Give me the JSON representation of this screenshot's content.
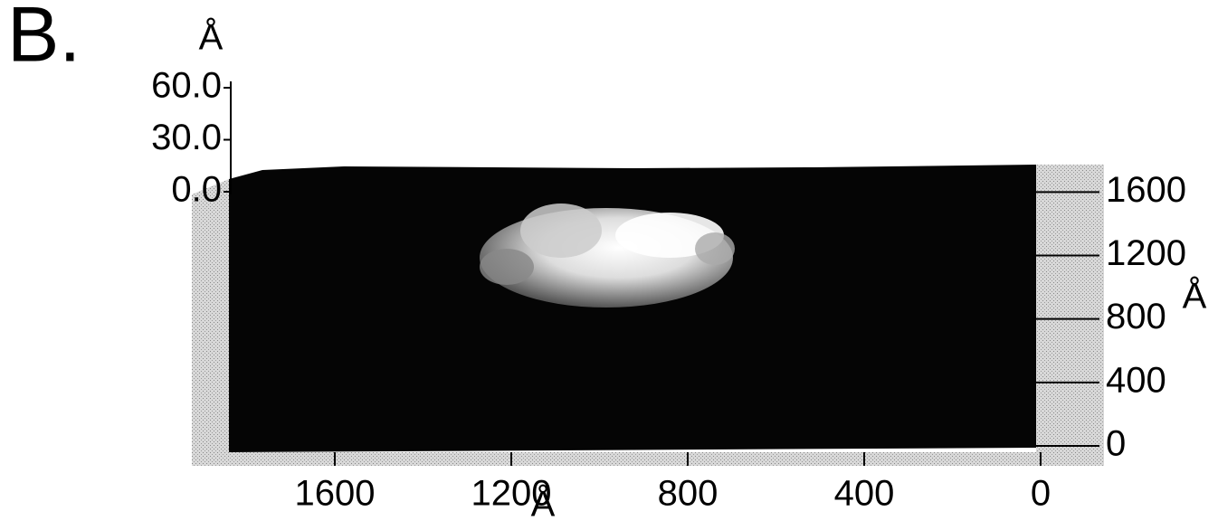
{
  "panel_label": "B.",
  "chart_data": {
    "type": "surface",
    "x_label": "Å",
    "y_label": "Å",
    "z_label": "Å",
    "xlim": [
      1840,
      0
    ],
    "xticks": [
      1600,
      1200,
      800,
      400,
      0
    ],
    "ylim": [
      0,
      1750
    ],
    "yticks": [
      0,
      400,
      800,
      1200,
      1600
    ],
    "zlim": [
      0,
      60
    ],
    "zticks": [
      {
        "value": 0,
        "label": "0.0"
      },
      {
        "value": 30,
        "label": "30.0"
      },
      {
        "value": 60,
        "label": "60.0"
      }
    ]
  }
}
